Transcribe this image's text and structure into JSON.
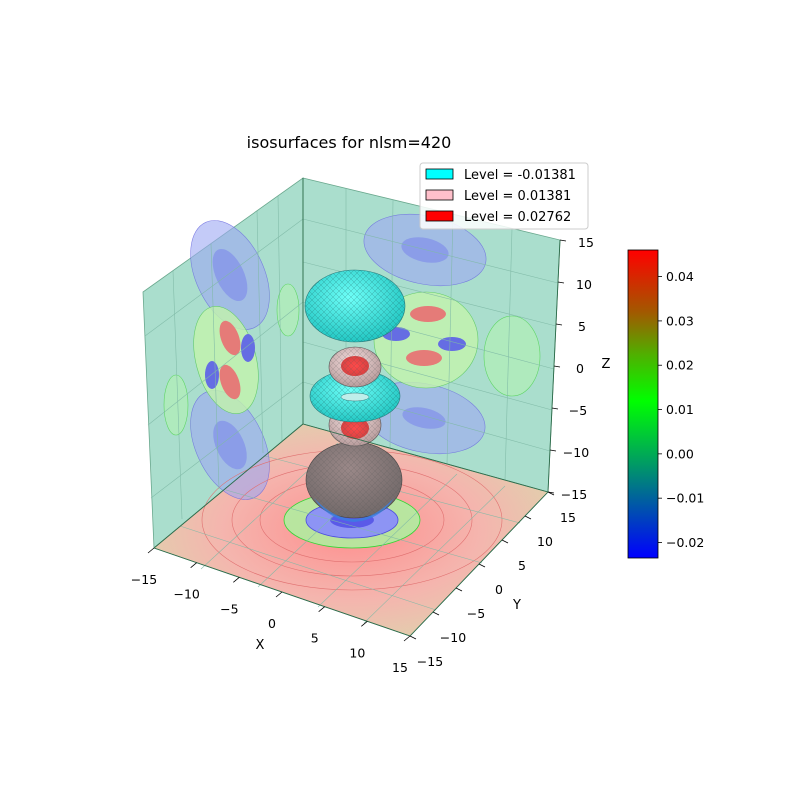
{
  "chart_data": {
    "type": "surface3d",
    "title": "isosurfaces for nlsm=420",
    "xlabel": "X",
    "ylabel": "Y",
    "zlabel": "Z",
    "xlim": [
      -15,
      15
    ],
    "ylim": [
      -15,
      15
    ],
    "zlim": [
      -15,
      15
    ],
    "xticks": [
      -15,
      -10,
      -5,
      0,
      5,
      10,
      15
    ],
    "yticks": [
      -15,
      -10,
      -5,
      0,
      5,
      10,
      15
    ],
    "zticks": [
      -15,
      -10,
      -5,
      0,
      5,
      10,
      15
    ],
    "isosurfaces": [
      {
        "label": "Level = -0.01381",
        "level": -0.01381,
        "color": "#00ffff"
      },
      {
        "label": "Level = 0.01381",
        "level": 0.01381,
        "color": "#ffc0cb"
      },
      {
        "label": "Level = 0.02762",
        "level": 0.02762,
        "color": "#ff0000"
      }
    ],
    "lobes": [
      {
        "z": 8.5,
        "kind": "negative"
      },
      {
        "z": 4,
        "kind": "positive"
      },
      {
        "z": -2,
        "kind": "negative"
      },
      {
        "z": -7,
        "kind": "positive"
      },
      {
        "z": -12,
        "kind": "positive"
      }
    ],
    "colorbar": {
      "ticks": [
        0.04,
        0.03,
        0.02,
        0.01,
        0.0,
        -0.01,
        -0.02
      ],
      "tick_labels": [
        "0.04",
        "0.03",
        "0.02",
        "0.01",
        "0.00",
        "−0.01",
        "−0.02"
      ],
      "range": [
        -0.0235,
        0.046
      ],
      "colors": [
        "#0000ff",
        "#00ff00",
        "#ff0000"
      ]
    },
    "legend_position": "top-right",
    "grid": true
  }
}
